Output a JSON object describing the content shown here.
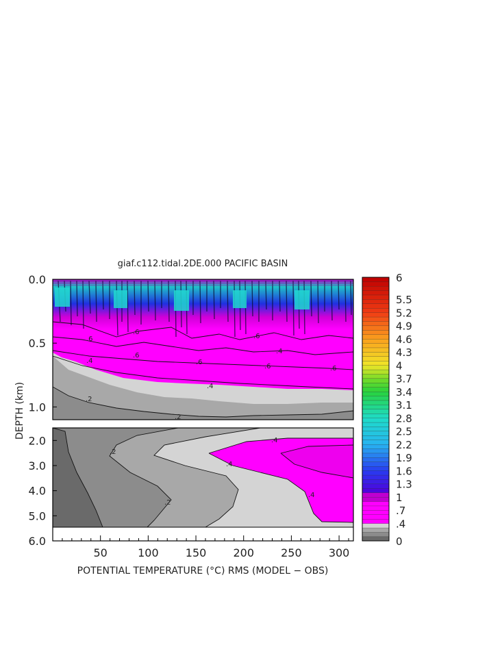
{
  "chart_data": {
    "type": "heatmap",
    "title": "giaf.c112.tidal.2DE.000 PACIFIC BASIN",
    "xlabel": "POTENTIAL TEMPERATURE (°C) RMS (MODEL − OBS)",
    "ylabel": "DEPTH (km)",
    "xlim": [
      0,
      315
    ],
    "x_ticks": [
      50,
      100,
      150,
      200,
      250,
      300
    ],
    "upper_panel": {
      "ylim": [
        0.0,
        1.1
      ],
      "y_ticks": [
        "0.0",
        "0.5",
        "1.0"
      ],
      "y_tick_values": [
        0.0,
        0.5,
        1.0
      ]
    },
    "lower_panel": {
      "ylim": [
        1.5,
        6.0
      ],
      "y_ticks": [
        "2.0",
        "3.0",
        "4.0",
        "5.0",
        "6.0"
      ],
      "y_tick_values": [
        2.0,
        3.0,
        4.0,
        5.0,
        6.0
      ]
    },
    "colorbar": {
      "labels": [
        "6",
        "5.5",
        "5.2",
        "4.9",
        "4.6",
        "4.3",
        "4",
        "3.7",
        "3.4",
        "3.1",
        "2.8",
        "2.5",
        "2.2",
        "1.9",
        "1.6",
        "1.3",
        "1",
        ".7",
        ".4",
        "0"
      ],
      "label_values": [
        6,
        5.5,
        5.2,
        4.9,
        4.6,
        4.3,
        4,
        3.7,
        3.4,
        3.1,
        2.8,
        2.5,
        2.2,
        1.9,
        1.6,
        1.3,
        1,
        0.7,
        0.4,
        0
      ]
    },
    "contour_labels": [
      ".6",
      ".6",
      ".6",
      ".6",
      ".6",
      ".6",
      ".6",
      ".4",
      ".4",
      ".4",
      ".2",
      ".2",
      ".2",
      ".2",
      ".4",
      ".4",
      ".4"
    ],
    "colors": {
      "gray_0": "#6a6a6a",
      "gray_1": "#8c8c8c",
      "gray_2": "#a8a8a8",
      "gray_3": "#d4d4d4",
      "magenta": "#ff00ff",
      "deep_magenta": "#d000d8",
      "blue": "#2a20e0",
      "cyan": "#22d8d0"
    }
  }
}
